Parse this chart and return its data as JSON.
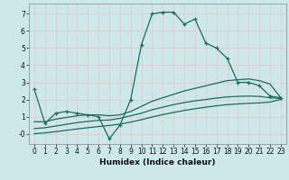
{
  "title": "",
  "xlabel": "Humidex (Indice chaleur)",
  "bg_color": "#cce8e8",
  "grid_color": "#e8c8c8",
  "line_color": "#1a6b60",
  "xlim": [
    -0.5,
    23.5
  ],
  "ylim": [
    -0.6,
    7.6
  ],
  "ytick_vals": [
    0,
    1,
    2,
    3,
    4,
    5,
    6,
    7
  ],
  "ytick_labels": [
    "-0",
    "1",
    "2",
    "3",
    "4",
    "5",
    "6",
    "7"
  ],
  "xtick_vals": [
    0,
    1,
    2,
    3,
    4,
    5,
    6,
    7,
    8,
    9,
    10,
    11,
    12,
    13,
    14,
    15,
    16,
    17,
    18,
    19,
    20,
    21,
    22,
    23
  ],
  "series_main": {
    "x": [
      0,
      1,
      2,
      3,
      4,
      5,
      6,
      7,
      8,
      9,
      10,
      11,
      12,
      13,
      14,
      15,
      16,
      17,
      18,
      19,
      20,
      21,
      22,
      23
    ],
    "y": [
      2.6,
      0.6,
      1.2,
      1.3,
      1.2,
      1.1,
      1.0,
      -0.3,
      0.5,
      2.0,
      5.2,
      7.0,
      7.1,
      7.1,
      6.4,
      6.7,
      5.3,
      5.0,
      4.4,
      3.0,
      3.0,
      2.8,
      2.2,
      2.1
    ]
  },
  "series_smooth1": {
    "x": [
      0,
      1,
      2,
      3,
      4,
      5,
      6,
      7,
      8,
      9,
      10,
      11,
      12,
      13,
      14,
      15,
      16,
      17,
      18,
      19,
      20,
      21,
      22,
      23
    ],
    "y": [
      0.7,
      0.7,
      0.85,
      0.95,
      1.05,
      1.1,
      1.1,
      1.05,
      1.1,
      1.3,
      1.6,
      1.9,
      2.1,
      2.3,
      2.5,
      2.65,
      2.8,
      2.95,
      3.1,
      3.15,
      3.2,
      3.1,
      2.9,
      2.1
    ]
  },
  "series_smooth2": {
    "x": [
      0,
      1,
      2,
      3,
      4,
      5,
      6,
      7,
      8,
      9,
      10,
      11,
      12,
      13,
      14,
      15,
      16,
      17,
      18,
      19,
      20,
      21,
      22,
      23
    ],
    "y": [
      0.3,
      0.35,
      0.45,
      0.55,
      0.65,
      0.72,
      0.78,
      0.8,
      0.9,
      1.05,
      1.2,
      1.4,
      1.55,
      1.7,
      1.82,
      1.92,
      2.0,
      2.08,
      2.15,
      2.18,
      2.2,
      2.18,
      2.1,
      2.05
    ]
  },
  "series_smooth3": {
    "x": [
      0,
      1,
      2,
      3,
      4,
      5,
      6,
      7,
      8,
      9,
      10,
      11,
      12,
      13,
      14,
      15,
      16,
      17,
      18,
      19,
      20,
      21,
      22,
      23
    ],
    "y": [
      0.0,
      0.05,
      0.12,
      0.2,
      0.28,
      0.35,
      0.42,
      0.48,
      0.56,
      0.68,
      0.82,
      0.98,
      1.12,
      1.24,
      1.36,
      1.46,
      1.55,
      1.63,
      1.7,
      1.74,
      1.78,
      1.8,
      1.85,
      2.0
    ]
  }
}
